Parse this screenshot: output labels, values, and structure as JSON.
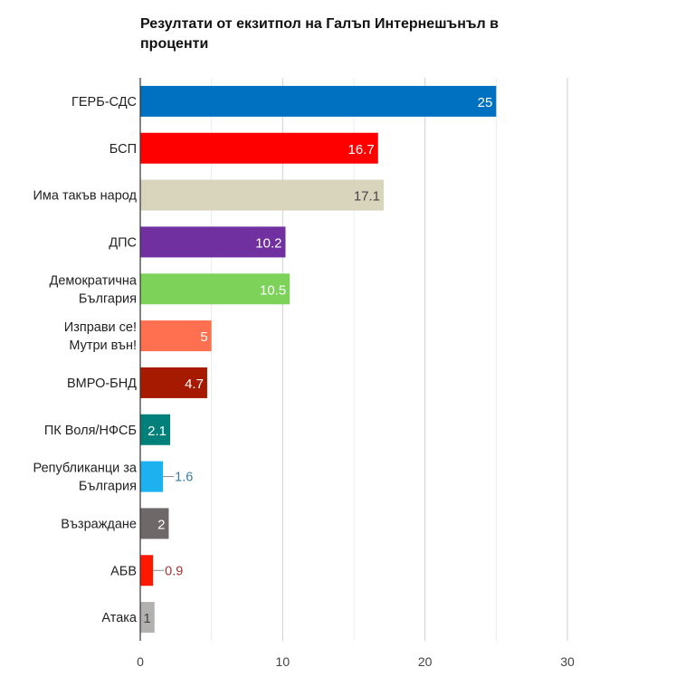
{
  "chart_data": {
    "type": "bar",
    "orientation": "horizontal",
    "title": "Резултати от екзитпол на Галъп Интернешънъл в проценти",
    "xlabel": "",
    "ylabel": "",
    "xlim": [
      0,
      30
    ],
    "xticks": [
      "0",
      "10",
      "20",
      "30"
    ],
    "grid": true,
    "categories": [
      [
        "ГЕРБ-СДС"
      ],
      [
        "БСП"
      ],
      [
        "Има такъв народ"
      ],
      [
        "ДПС"
      ],
      [
        "Демократична",
        "България"
      ],
      [
        "Изправи се!",
        "Мутри вън!"
      ],
      [
        "ВМРО-БНД"
      ],
      [
        "ПК Воля/НФСБ"
      ],
      [
        "Републиканци за",
        "България"
      ],
      [
        "Възраждане"
      ],
      [
        "АБВ"
      ],
      [
        "Атака"
      ]
    ],
    "values": [
      25,
      16.7,
      17.1,
      10.2,
      10.5,
      5,
      4.7,
      2.1,
      1.6,
      2,
      0.9,
      1
    ],
    "value_labels": [
      "25",
      "16.7",
      "17.1",
      "10.2",
      "10.5",
      "5",
      "4.7",
      "2.1",
      "1.6",
      "2",
      "0.9",
      "1"
    ],
    "colors": [
      "#0070c0",
      "#ff0000",
      "#d9d5bc",
      "#7030a0",
      "#7dd35a",
      "#ff7050",
      "#a51a00",
      "#00807a",
      "#1eb1ef",
      "#6e6869",
      "#ff1800",
      "#b3b0b0"
    ],
    "label_colors": [
      "#ffffff",
      "#ffffff",
      "#444444",
      "#ffffff",
      "#ffffff",
      "#ffffff",
      "#ffffff",
      "#ffffff",
      "#3c7aa6",
      "#ffffff",
      "#a83232",
      "#444444"
    ],
    "label_outside": [
      false,
      false,
      false,
      false,
      false,
      false,
      false,
      false,
      true,
      false,
      true,
      false
    ]
  }
}
